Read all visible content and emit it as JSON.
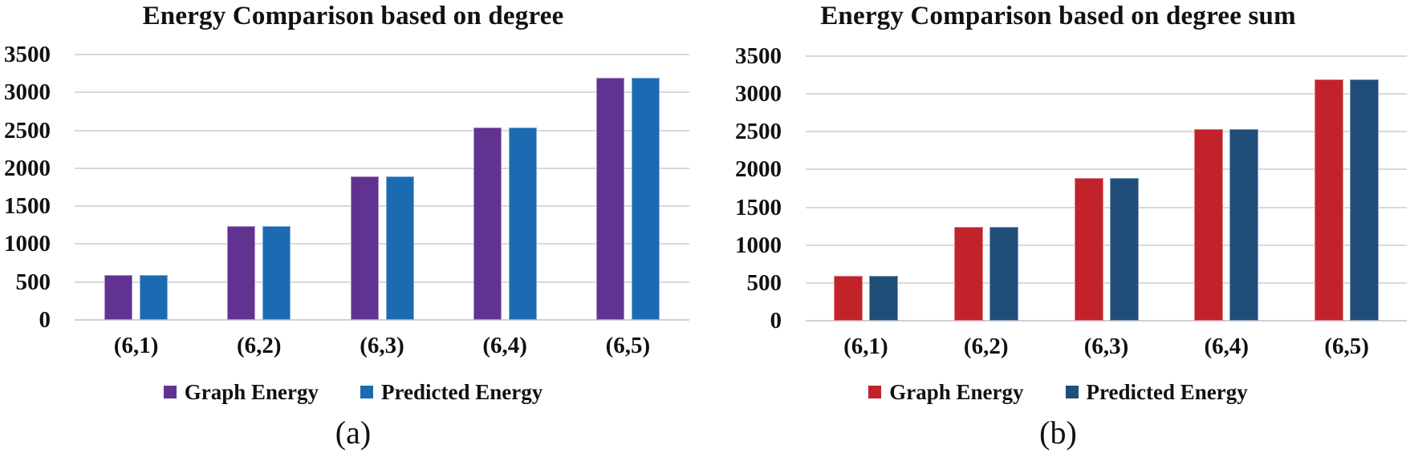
{
  "figure": {
    "background": "#FFFFFF",
    "grid_color": "#D9D9D9"
  },
  "chart_data": [
    {
      "type": "bar",
      "title": "Energy Comparison based on degree",
      "caption": "(a)",
      "categories": [
        "(6,1)",
        "(6,2)",
        "(6,3)",
        "(6,4)",
        "(6,5)"
      ],
      "series": [
        {
          "name": "Graph Energy",
          "color": "#613391",
          "values": [
            590,
            1240,
            1890,
            2540,
            3190
          ]
        },
        {
          "name": "Predicted Energy",
          "color": "#1C6BB2",
          "values": [
            590,
            1240,
            1890,
            2540,
            3190
          ]
        }
      ],
      "ylim": [
        0,
        3500
      ],
      "ytick_step": 500,
      "yticks": [
        "0",
        "500",
        "1000",
        "1500",
        "2000",
        "2500",
        "3000",
        "3500"
      ],
      "grid": "horizontal",
      "legend_position": "bottom"
    },
    {
      "type": "bar",
      "title": "Energy Comparison based on degree sum",
      "caption": "(b)",
      "categories": [
        "(6,1)",
        "(6,2)",
        "(6,3)",
        "(6,4)",
        "(6,5)"
      ],
      "series": [
        {
          "name": "Graph Energy",
          "color": "#C2222A",
          "values": [
            590,
            1240,
            1890,
            2540,
            3190
          ]
        },
        {
          "name": "Predicted Energy",
          "color": "#1F4E78",
          "values": [
            590,
            1240,
            1890,
            2540,
            3190
          ]
        }
      ],
      "ylim": [
        0,
        3500
      ],
      "ytick_step": 500,
      "yticks": [
        "0",
        "500",
        "1000",
        "1500",
        "2000",
        "2500",
        "3000",
        "3500"
      ],
      "grid": "horizontal",
      "legend_position": "bottom"
    }
  ]
}
